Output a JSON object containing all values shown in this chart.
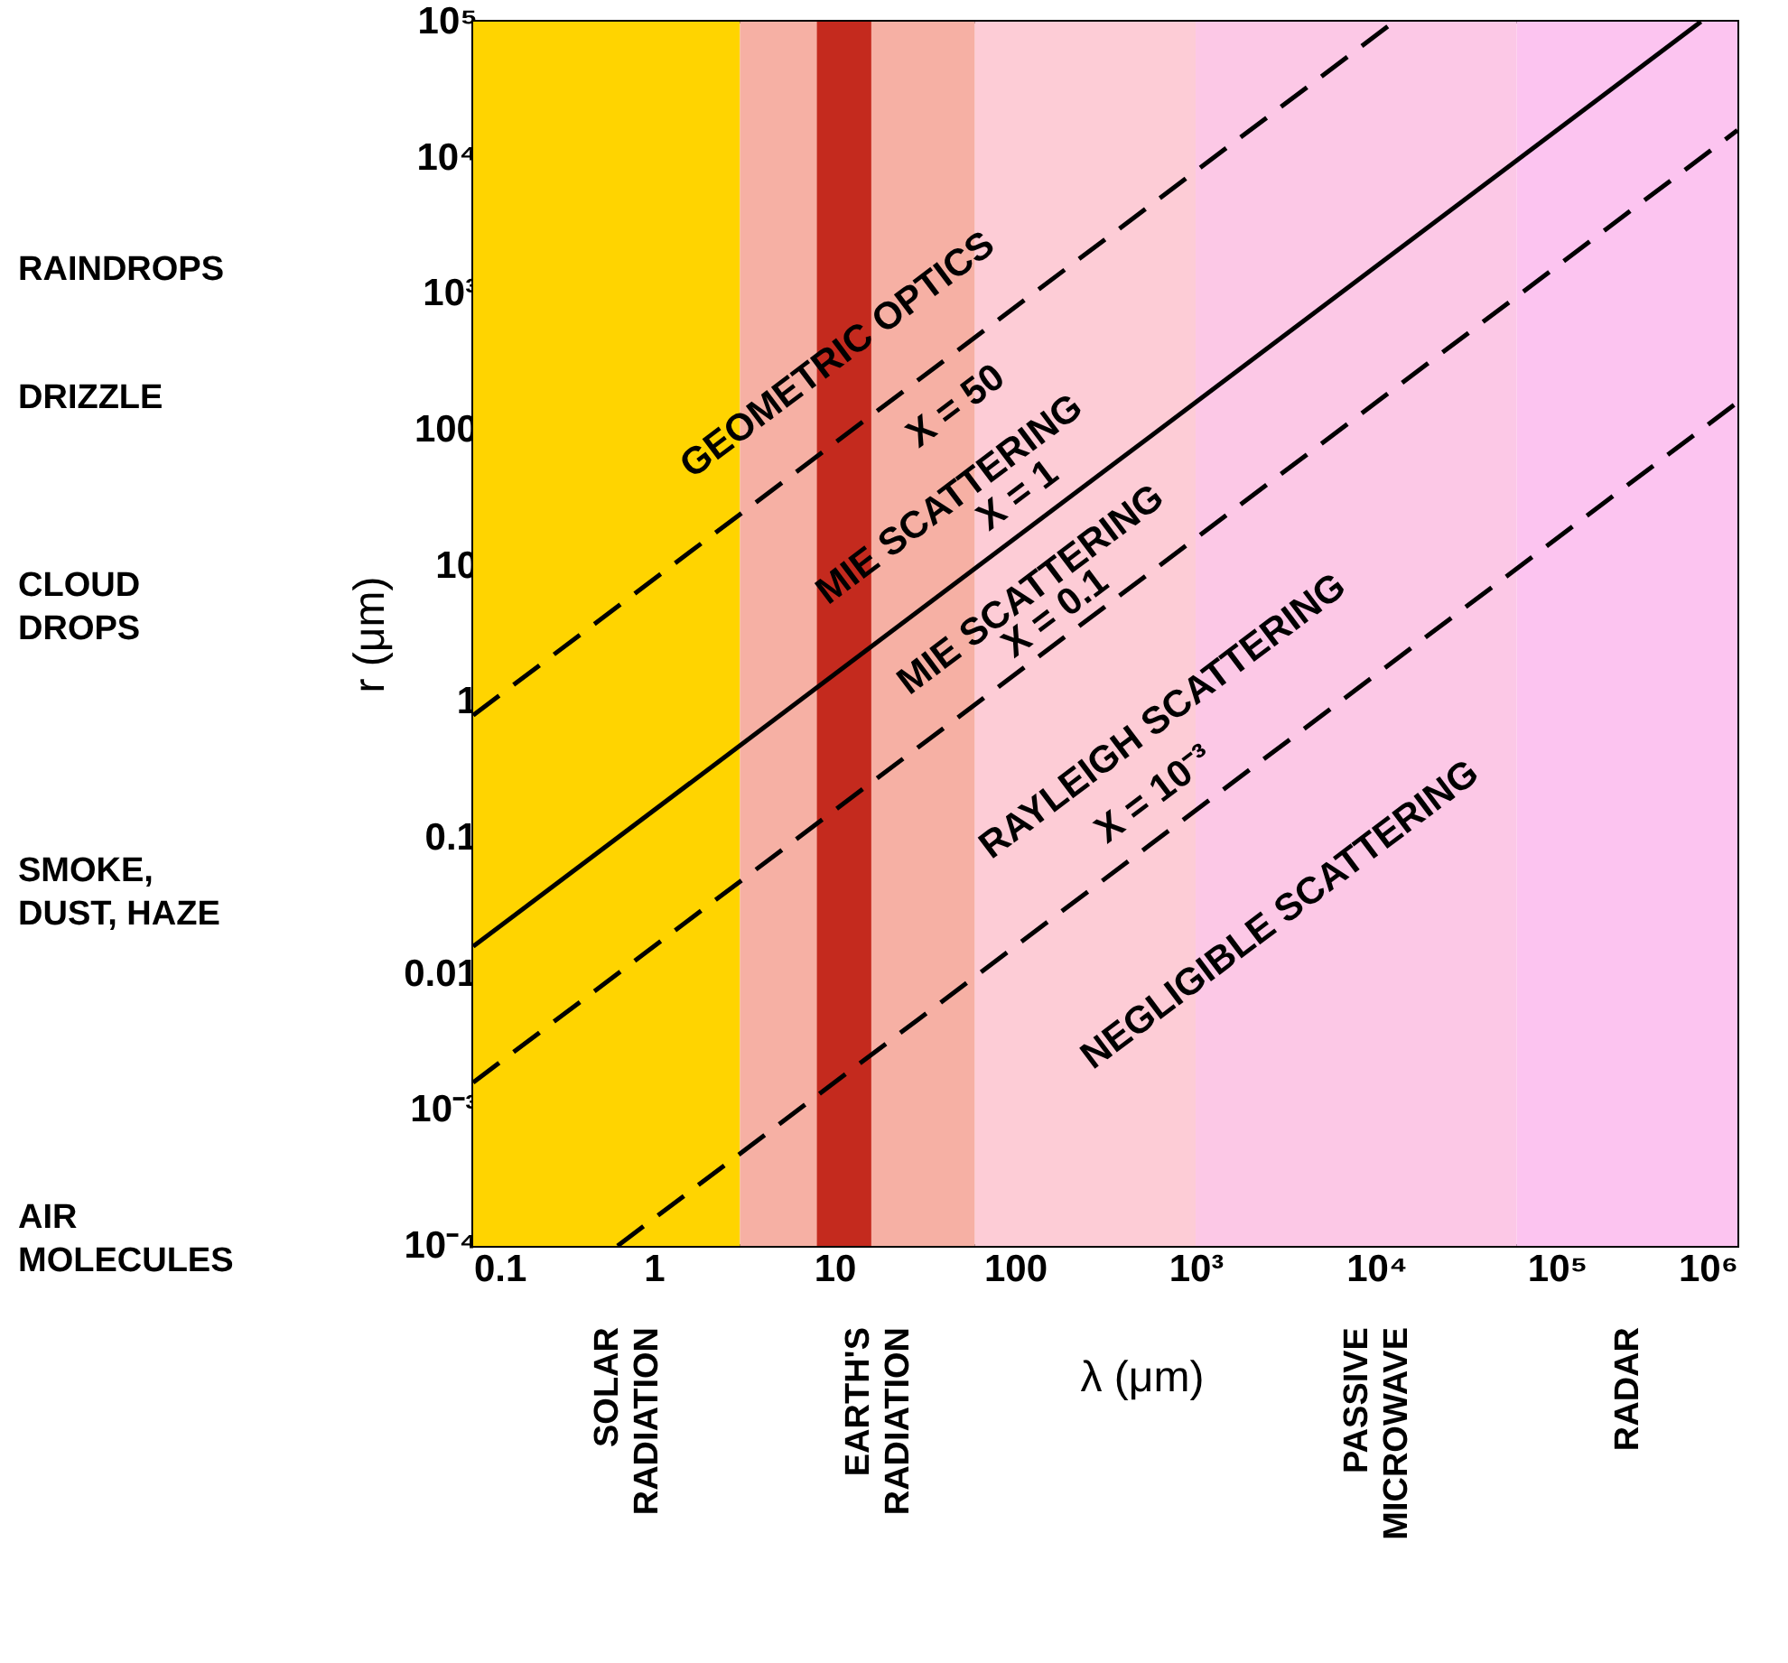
{
  "chart_data": {
    "type": "line",
    "xlabel": "λ (μm)",
    "ylabel": "r (μm)",
    "log": "xy",
    "xlim": [
      0.1,
      1000000
    ],
    "ylim": [
      0.0001,
      100000
    ],
    "xticks": [
      0.1,
      1,
      10,
      100,
      {
        "value": 1000,
        "label": "10³"
      },
      {
        "value": 10000,
        "label": "10⁴"
      },
      {
        "value": 100000,
        "label": "10⁵"
      },
      {
        "value": 1000000,
        "label": "10⁶"
      }
    ],
    "yticks": [
      {
        "value": 0.0001,
        "label": "10⁻⁴"
      },
      {
        "value": 0.001,
        "label": "10⁻³"
      },
      0.01,
      0.1,
      1,
      10,
      100,
      {
        "value": 1000,
        "label": "10³"
      },
      {
        "value": 10000,
        "label": "10⁴"
      },
      {
        "value": 100000,
        "label": "10⁵"
      }
    ],
    "grid": false,
    "series": [
      {
        "color": "#000000",
        "line_style": "dashed",
        "x": [
          0.1,
          12566
        ],
        "values": [
          0.796,
          100000
        ]
      },
      {
        "color": "#000000",
        "line_style": "solid",
        "x": [
          0.1,
          628000
        ],
        "values": [
          0.0159,
          100000
        ]
      },
      {
        "color": "#000000",
        "line_style": "dashed",
        "x": [
          0.1,
          1000000
        ],
        "values": [
          0.00159,
          15900
        ]
      },
      {
        "color": "#000000",
        "line_style": "dashed",
        "x": [
          0.63,
          1000000
        ],
        "values": [
          0.0001,
          159
        ]
      }
    ],
    "bands": [
      {
        "axis": "x",
        "from": 0.1,
        "to": 3,
        "label": "SOLAR\nRADIATION",
        "color": "#ffd400"
      },
      {
        "axis": "x",
        "from": 3,
        "to": 60,
        "label": "EARTH'S\nRADIATION",
        "color": "#f6b0a4"
      },
      {
        "axis": "x",
        "from": 8,
        "to": 16,
        "label": null,
        "color": "#c42a1e"
      },
      {
        "axis": "x",
        "from": 60,
        "to": 1000,
        "label": null,
        "color": "#fdccd6"
      },
      {
        "axis": "x",
        "from": 1000,
        "to": 60000,
        "label": "PASSIVE\nMICROWAVE",
        "color": "#fcc8e6"
      },
      {
        "axis": "x",
        "from": 60000,
        "to": 1000000,
        "label": "RADAR",
        "color": "#fcc4f0"
      }
    ],
    "annotations": [
      "GEOMETRIC OPTICS",
      {
        "text": "X = 50",
        "x": 59,
        "y": 100
      },
      "MIE  SCATTERING",
      {
        "text": "X = 1",
        "x": 130,
        "y": 22
      },
      "MIE  SCATTERING",
      {
        "text": "X = 0.1",
        "x": 210,
        "y": 3
      },
      "RAYLEIGH  SCATTERING",
      {
        "text": "X = 10⁻³",
        "x": 740,
        "y": 0.14
      },
      "NEGLIGIBLE SCATTERING",
      "RAINDROPS",
      "DRIZZLE",
      "CLOUD\nDROPS",
      "SMOKE,\nDUST, HAZE",
      "AIR\nMOLECULES"
    ]
  }
}
